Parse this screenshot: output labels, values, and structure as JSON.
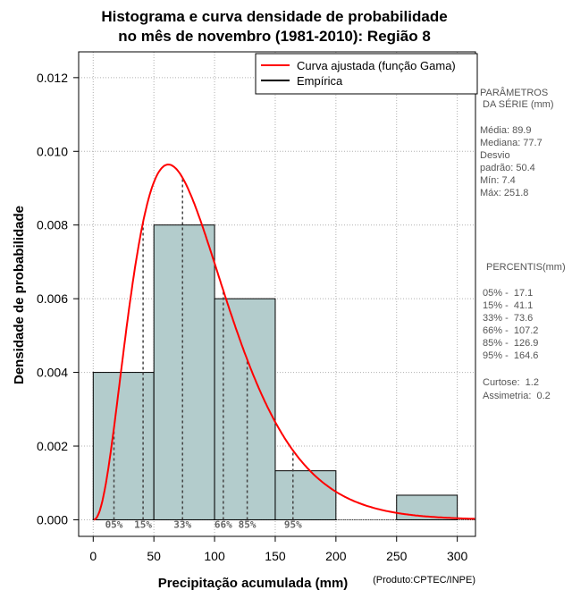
{
  "title_line1": "Histograma e curva densidade de probabilidade",
  "title_line2": "no mês de novembro (1981-2010): Região 8",
  "credit": "(Produto:CPTEC/INPE)",
  "colors": {
    "bar_fill": "#b3cccc",
    "curve": "#ff0000",
    "percentile_line": "#444444"
  },
  "legend": {
    "fitted": "Curva ajustada (função Gama)",
    "empirical": "Empírica"
  },
  "chart_data": {
    "type": "bar",
    "title": "Histograma e curva densidade de probabilidade no mês de novembro (1981-2010): Região 8",
    "xlabel": "Precipitação acumulada (mm)",
    "ylabel": "Densidade de probabilidade",
    "xlim": [
      -12,
      315
    ],
    "ylim": [
      -0.00045,
      0.0127
    ],
    "x_ticks": [
      0,
      50,
      100,
      150,
      200,
      250,
      300
    ],
    "x_tick_labels": [
      "0",
      "50",
      "100",
      "150",
      "200",
      "250",
      "300"
    ],
    "y_ticks": [
      0,
      0.002,
      0.004,
      0.006,
      0.008,
      0.01,
      0.012
    ],
    "y_tick_labels": [
      "0.000",
      "0.002",
      "0.004",
      "0.006",
      "0.008",
      "0.010",
      "0.012"
    ],
    "grid": true,
    "bins": [
      {
        "start": 0,
        "end": 50,
        "density": 0.004
      },
      {
        "start": 50,
        "end": 100,
        "density": 0.008
      },
      {
        "start": 100,
        "end": 150,
        "density": 0.006
      },
      {
        "start": 150,
        "end": 200,
        "density": 0.00133
      },
      {
        "start": 200,
        "end": 250,
        "density": 0
      },
      {
        "start": 250,
        "end": 300,
        "density": 0.000667
      }
    ],
    "gamma_fit": {
      "shape": 3.4,
      "scale": 25.8
    },
    "percentiles": [
      {
        "label": "05%",
        "value": 17.1
      },
      {
        "label": "15%",
        "value": 41.1
      },
      {
        "label": "33%",
        "value": 73.6
      },
      {
        "label": "66%",
        "value": 107.2
      },
      {
        "label": "85%",
        "value": 126.9
      },
      {
        "label": "95%",
        "value": 164.6
      }
    ],
    "legend_position": "top-right"
  },
  "side_panel": {
    "params_header": [
      "PARÂMETROS",
      " DA SÉRIE (mm)"
    ],
    "params": [
      "Média:  89.9",
      "Mediana:  77.7",
      "Desvio",
      "padrão:  50.4",
      "Mín:  7.4",
      "Máx:  251.8"
    ],
    "percentis_header": "PERCENTIS(mm)",
    "percentis": [
      "05% -  17.1",
      "15% -  41.1",
      "33% -  73.6",
      "66% -  107.2",
      "85% -  126.9",
      "95% -  164.6"
    ],
    "stats": [
      "Curtose:  1.2",
      "Assimetria:  0.2"
    ]
  }
}
